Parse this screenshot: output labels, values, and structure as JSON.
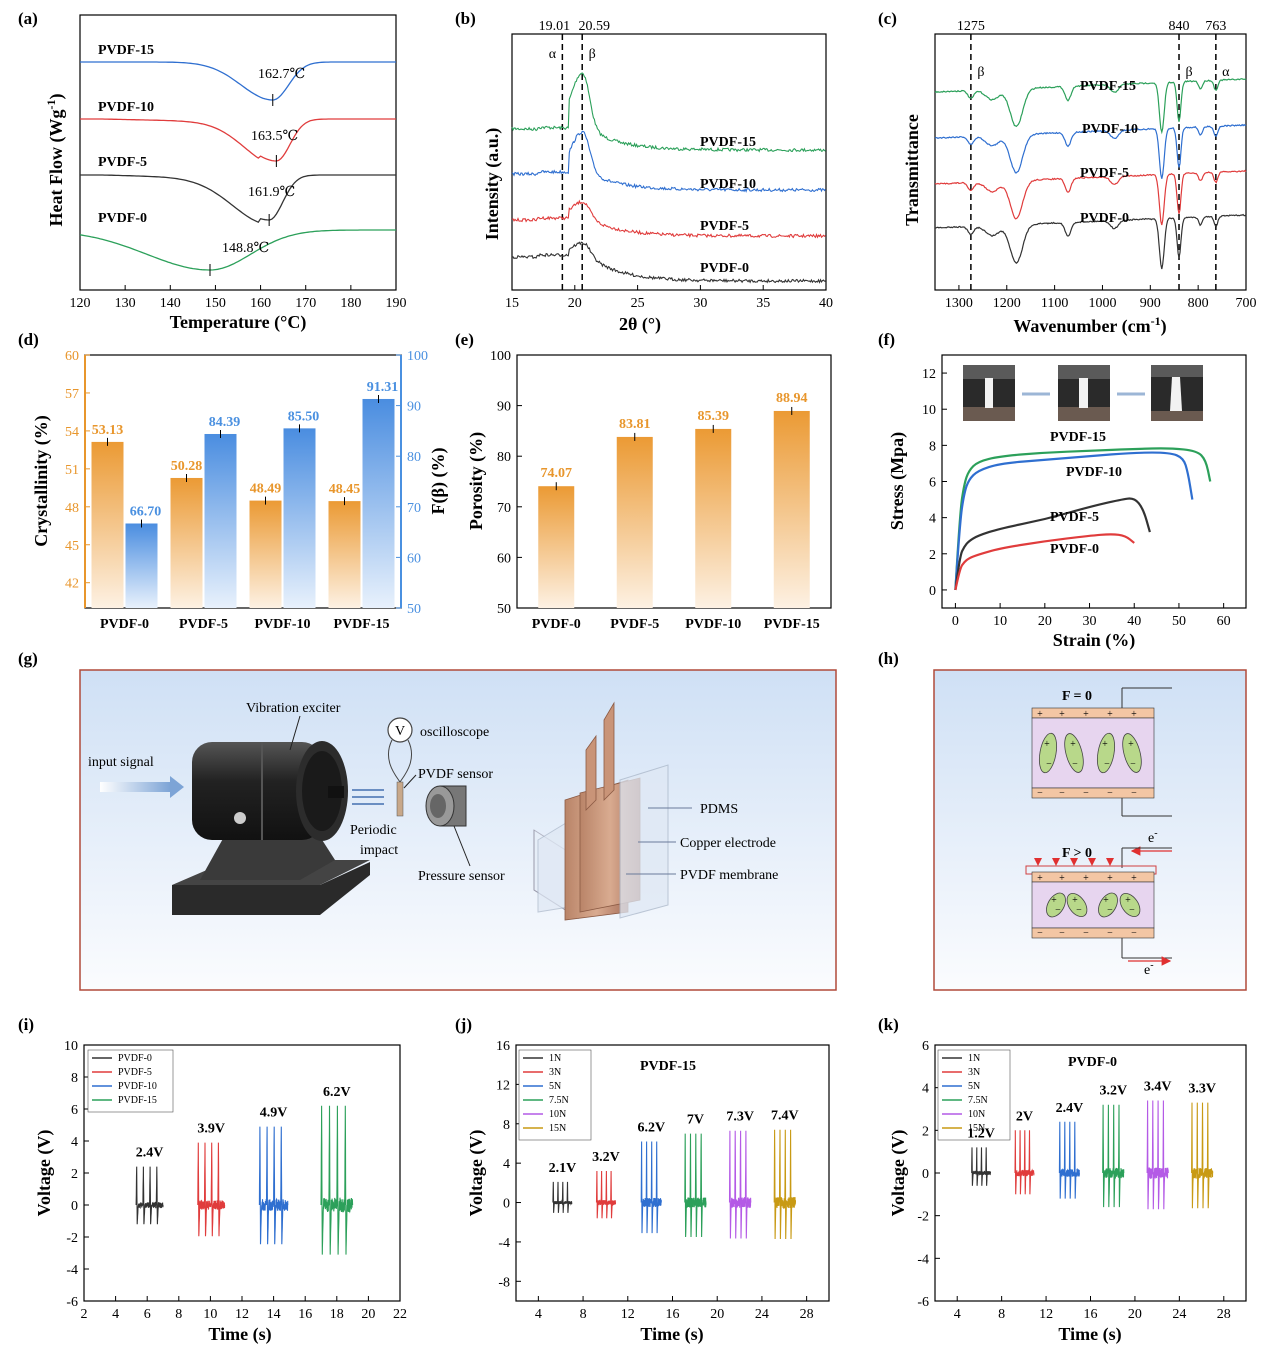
{
  "colors": {
    "green": "#2ca05a",
    "red": "#e03c3c",
    "blue": "#2f6fd0",
    "black": "#333333",
    "orange": "#e8962c",
    "sky": "#4a90e0",
    "purple": "#b45ae6",
    "gold": "#c89a14"
  },
  "panels": {
    "a": {
      "label": "(a)",
      "xlabel": "Temperature (°C)",
      "ylabel": "Heat Flow (Wg",
      "ylabel_sup": "-1",
      "ylabel_end": ")"
    },
    "b": {
      "label": "(b)",
      "xlabel": "2θ (°)",
      "ylabel": "Intensity (a.u.)"
    },
    "c": {
      "label": "(c)",
      "xlabel": "Wavenumber (cm",
      "xlabel_sup": "-1",
      "xlabel_end": ")",
      "ylabel": "Transmittance"
    },
    "d": {
      "label": "(d)",
      "ylabel": "Crystallinity (%)",
      "ylabel2": "F(β) (%)"
    },
    "e": {
      "label": "(e)",
      "ylabel": "Porosity (%)"
    },
    "f": {
      "label": "(f)",
      "xlabel": "Strain (%)",
      "ylabel": "Stress (Mpa)"
    },
    "g": {
      "label": "(g)"
    },
    "h": {
      "label": "(h)"
    },
    "i": {
      "label": "(i)",
      "xlabel": "Time (s)",
      "ylabel": "Voltage (V)"
    },
    "j": {
      "label": "(j)",
      "xlabel": "Time (s)",
      "ylabel": "Voltage (V)"
    },
    "k": {
      "label": "(k)",
      "xlabel": "Time (s)",
      "ylabel": "Voltage (V)"
    }
  },
  "diagram_g": {
    "vibration_exciter": "Vibration exciter",
    "input_signal": "input signal",
    "oscilloscope_symbol": "V",
    "oscilloscope": "oscilloscope",
    "pvdf_sensor": "PVDF sensor",
    "periodic": "Periodic",
    "impact": "impact",
    "pressure_sensor": "Pressure sensor",
    "pdms": "PDMS",
    "copper_electrode": "Copper electrode",
    "pvdf_membrane": "PVDF membrane"
  },
  "diagram_h": {
    "f0": "F = 0",
    "fgt0": "F > 0",
    "electron": "e",
    "electron_sup": "-",
    "plus": "+",
    "minus": "−"
  },
  "chart_data": [
    {
      "id": "a",
      "type": "line",
      "title": "",
      "xlabel": "Temperature (°C)",
      "ylabel": "Heat Flow (Wg-1)",
      "xlim": [
        120,
        190
      ],
      "xticks": [
        120,
        130,
        140,
        150,
        160,
        170,
        180,
        190
      ],
      "series": [
        {
          "name": "PVDF-15",
          "color": "#2f6fd0",
          "peak_x": 162.7,
          "peak_label": "162.7℃"
        },
        {
          "name": "PVDF-10",
          "color": "#e03c3c",
          "peak_x": 163.5,
          "peak_label": "163.5℃"
        },
        {
          "name": "PVDF-5",
          "color": "#333333",
          "peak_x": 161.9,
          "peak_label": "161.9℃"
        },
        {
          "name": "PVDF-0",
          "color": "#2ca05a",
          "peak_x": 148.8,
          "peak_label": "148.8℃"
        }
      ]
    },
    {
      "id": "b",
      "type": "line",
      "xlabel": "2θ (°)",
      "ylabel": "Intensity (a.u.)",
      "xlim": [
        15,
        40
      ],
      "xticks": [
        15,
        20,
        25,
        30,
        35,
        40
      ],
      "markers": [
        {
          "x": 19.01,
          "label": "19.01",
          "phase": "α"
        },
        {
          "x": 20.59,
          "label": "20.59",
          "phase": "β"
        }
      ],
      "series": [
        {
          "name": "PVDF-15",
          "color": "#2ca05a",
          "peak_x": 20.6
        },
        {
          "name": "PVDF-10",
          "color": "#2f6fd0",
          "peak_x": 20.6
        },
        {
          "name": "PVDF-5",
          "color": "#e03c3c",
          "peak_x": 20.6
        },
        {
          "name": "PVDF-0",
          "color": "#333333",
          "peak_x": 20.6
        }
      ]
    },
    {
      "id": "c",
      "type": "line",
      "xlabel": "Wavenumber (cm-1)",
      "ylabel": "Transmittance",
      "xlim": [
        1350,
        700
      ],
      "xticks": [
        1300,
        1200,
        1100,
        1000,
        900,
        800,
        700
      ],
      "markers": [
        {
          "x": 1275,
          "label": "1275",
          "phase": "β"
        },
        {
          "x": 840,
          "label": "840",
          "phase": "β"
        },
        {
          "x": 763,
          "label": "763",
          "phase": "α"
        }
      ],
      "series": [
        {
          "name": "PVDF-15",
          "color": "#2ca05a"
        },
        {
          "name": "PVDF-10",
          "color": "#2f6fd0"
        },
        {
          "name": "PVDF-5",
          "color": "#e03c3c"
        },
        {
          "name": "PVDF-0",
          "color": "#333333"
        }
      ]
    },
    {
      "id": "d",
      "type": "bar",
      "categories": [
        "PVDF-0",
        "PVDF-5",
        "PVDF-10",
        "PVDF-15"
      ],
      "ylabel": "Crystallinity (%)",
      "ylim": [
        40,
        60
      ],
      "yticks": [
        42,
        45,
        48,
        51,
        54,
        57,
        60
      ],
      "y2label": "F(β) (%)",
      "y2lim": [
        50,
        100
      ],
      "y2ticks": [
        50,
        60,
        70,
        80,
        90,
        100
      ],
      "series": [
        {
          "name": "Crystallinity",
          "axis": "left",
          "color": "#e8962c",
          "values": [
            53.13,
            50.28,
            48.49,
            48.45
          ],
          "labels": [
            "53.13",
            "50.28",
            "48.49",
            "48.45"
          ]
        },
        {
          "name": "F(β)",
          "axis": "right",
          "color": "#4a90e0",
          "values": [
            66.7,
            84.39,
            85.5,
            91.31
          ],
          "labels": [
            "66.70",
            "84.39",
            "85.50",
            "91.31"
          ]
        }
      ]
    },
    {
      "id": "e",
      "type": "bar",
      "categories": [
        "PVDF-0",
        "PVDF-5",
        "PVDF-10",
        "PVDF-15"
      ],
      "ylabel": "Porosity (%)",
      "ylim": [
        50,
        100
      ],
      "yticks": [
        50,
        60,
        70,
        80,
        90,
        100
      ],
      "series": [
        {
          "name": "Porosity",
          "color": "#e8962c",
          "values": [
            74.07,
            83.81,
            85.39,
            88.94
          ],
          "labels": [
            "74.07",
            "83.81",
            "85.39",
            "88.94"
          ]
        }
      ]
    },
    {
      "id": "f",
      "type": "line",
      "xlabel": "Strain (%)",
      "ylabel": "Stress (Mpa)",
      "xlim": [
        -3,
        65
      ],
      "ylim": [
        -1,
        13
      ],
      "xticks": [
        0,
        10,
        20,
        30,
        40,
        50,
        60
      ],
      "yticks": [
        0,
        2,
        4,
        6,
        8,
        10,
        12
      ],
      "series": [
        {
          "name": "PVDF-15",
          "color": "#2ca05a",
          "x": [
            0,
            1,
            2,
            3,
            5,
            10,
            20,
            30,
            40,
            48,
            54,
            56,
            57
          ],
          "y": [
            0,
            4.3,
            5.9,
            6.6,
            7.1,
            7.4,
            7.6,
            7.7,
            7.8,
            7.85,
            7.7,
            7.2,
            6.0
          ]
        },
        {
          "name": "PVDF-10",
          "color": "#2f6fd0",
          "x": [
            0,
            1,
            2,
            3,
            5,
            10,
            20,
            30,
            40,
            48,
            51,
            52,
            53
          ],
          "y": [
            0,
            3.8,
            5.4,
            6.1,
            6.6,
            7.0,
            7.2,
            7.4,
            7.6,
            7.6,
            7.3,
            6.5,
            5.0
          ]
        },
        {
          "name": "PVDF-5",
          "color": "#333333",
          "x": [
            0,
            1,
            2,
            3,
            5,
            10,
            20,
            30,
            37,
            40,
            42,
            43.5
          ],
          "y": [
            0,
            1.9,
            2.4,
            2.7,
            3.0,
            3.4,
            3.9,
            4.6,
            5.0,
            5.1,
            4.5,
            3.2
          ]
        },
        {
          "name": "PVDF-0",
          "color": "#e03c3c",
          "x": [
            0,
            1,
            2,
            3,
            5,
            10,
            20,
            30,
            35,
            38,
            40
          ],
          "y": [
            0,
            1.2,
            1.55,
            1.75,
            1.95,
            2.3,
            2.7,
            3.0,
            3.1,
            3.0,
            2.6
          ]
        }
      ]
    },
    {
      "id": "i",
      "type": "line",
      "xlabel": "Time (s)",
      "ylabel": "Voltage (V)",
      "xlim": [
        2,
        22
      ],
      "ylim": [
        -6,
        10
      ],
      "xticks": [
        2,
        4,
        6,
        8,
        10,
        12,
        14,
        16,
        18,
        20,
        22
      ],
      "yticks": [
        -6,
        -4,
        -2,
        0,
        2,
        4,
        6,
        8,
        10
      ],
      "series": [
        {
          "name": "PVDF-0",
          "color": "#333333",
          "t_start": 5.3,
          "t_end": 7.0,
          "peak": 2.4,
          "label": "2.4V"
        },
        {
          "name": "PVDF-5",
          "color": "#e03c3c",
          "t_start": 9.2,
          "t_end": 10.9,
          "peak": 3.9,
          "label": "3.9V"
        },
        {
          "name": "PVDF-10",
          "color": "#2f6fd0",
          "t_start": 13.1,
          "t_end": 14.9,
          "peak": 4.9,
          "label": "4.9V"
        },
        {
          "name": "PVDF-15",
          "color": "#2ca05a",
          "t_start": 17.0,
          "t_end": 19.0,
          "peak": 6.2,
          "label": "6.2V"
        }
      ]
    },
    {
      "id": "j",
      "type": "line",
      "title": "PVDF-15",
      "xlabel": "Time (s)",
      "ylabel": "Voltage (V)",
      "xlim": [
        2,
        30
      ],
      "ylim": [
        -10,
        16
      ],
      "xticks": [
        4,
        8,
        12,
        16,
        20,
        24,
        28
      ],
      "yticks": [
        -8,
        -4,
        0,
        4,
        8,
        12,
        16
      ],
      "series": [
        {
          "name": "1N",
          "color": "#333333",
          "t_start": 5.3,
          "t_end": 7.0,
          "peak": 2.1,
          "label": "2.1V"
        },
        {
          "name": "3N",
          "color": "#e03c3c",
          "t_start": 9.2,
          "t_end": 10.9,
          "peak": 3.2,
          "label": "3.2V"
        },
        {
          "name": "5N",
          "color": "#2f6fd0",
          "t_start": 13.2,
          "t_end": 15.0,
          "peak": 6.2,
          "label": "6.2V"
        },
        {
          "name": "7.5N",
          "color": "#2ca05a",
          "t_start": 17.1,
          "t_end": 19.0,
          "peak": 7.0,
          "label": "7V"
        },
        {
          "name": "10N",
          "color": "#b45ae6",
          "t_start": 21.1,
          "t_end": 23.0,
          "peak": 7.3,
          "label": "7.3V"
        },
        {
          "name": "15N",
          "color": "#c89a14",
          "t_start": 25.1,
          "t_end": 27.0,
          "peak": 7.4,
          "label": "7.4V"
        }
      ]
    },
    {
      "id": "k",
      "type": "line",
      "title": "PVDF-0",
      "xlabel": "Time (s)",
      "ylabel": "Voltage (V)",
      "xlim": [
        2,
        30
      ],
      "ylim": [
        -6,
        6
      ],
      "xticks": [
        4,
        8,
        12,
        16,
        20,
        24,
        28
      ],
      "yticks": [
        -6,
        -4,
        -2,
        0,
        2,
        4,
        6
      ],
      "series": [
        {
          "name": "1N",
          "color": "#333333",
          "t_start": 5.3,
          "t_end": 7.0,
          "peak": 1.2,
          "label": "1.2V"
        },
        {
          "name": "3N",
          "color": "#e03c3c",
          "t_start": 9.2,
          "t_end": 10.9,
          "peak": 2.0,
          "label": "2V"
        },
        {
          "name": "5N",
          "color": "#2f6fd0",
          "t_start": 13.2,
          "t_end": 15.0,
          "peak": 2.4,
          "label": "2.4V"
        },
        {
          "name": "7.5N",
          "color": "#2ca05a",
          "t_start": 17.1,
          "t_end": 19.0,
          "peak": 3.2,
          "label": "3.2V"
        },
        {
          "name": "10N",
          "color": "#b45ae6",
          "t_start": 21.1,
          "t_end": 23.0,
          "peak": 3.4,
          "label": "3.4V"
        },
        {
          "name": "15N",
          "color": "#c89a14",
          "t_start": 25.1,
          "t_end": 27.0,
          "peak": 3.3,
          "label": "3.3V"
        }
      ]
    }
  ]
}
